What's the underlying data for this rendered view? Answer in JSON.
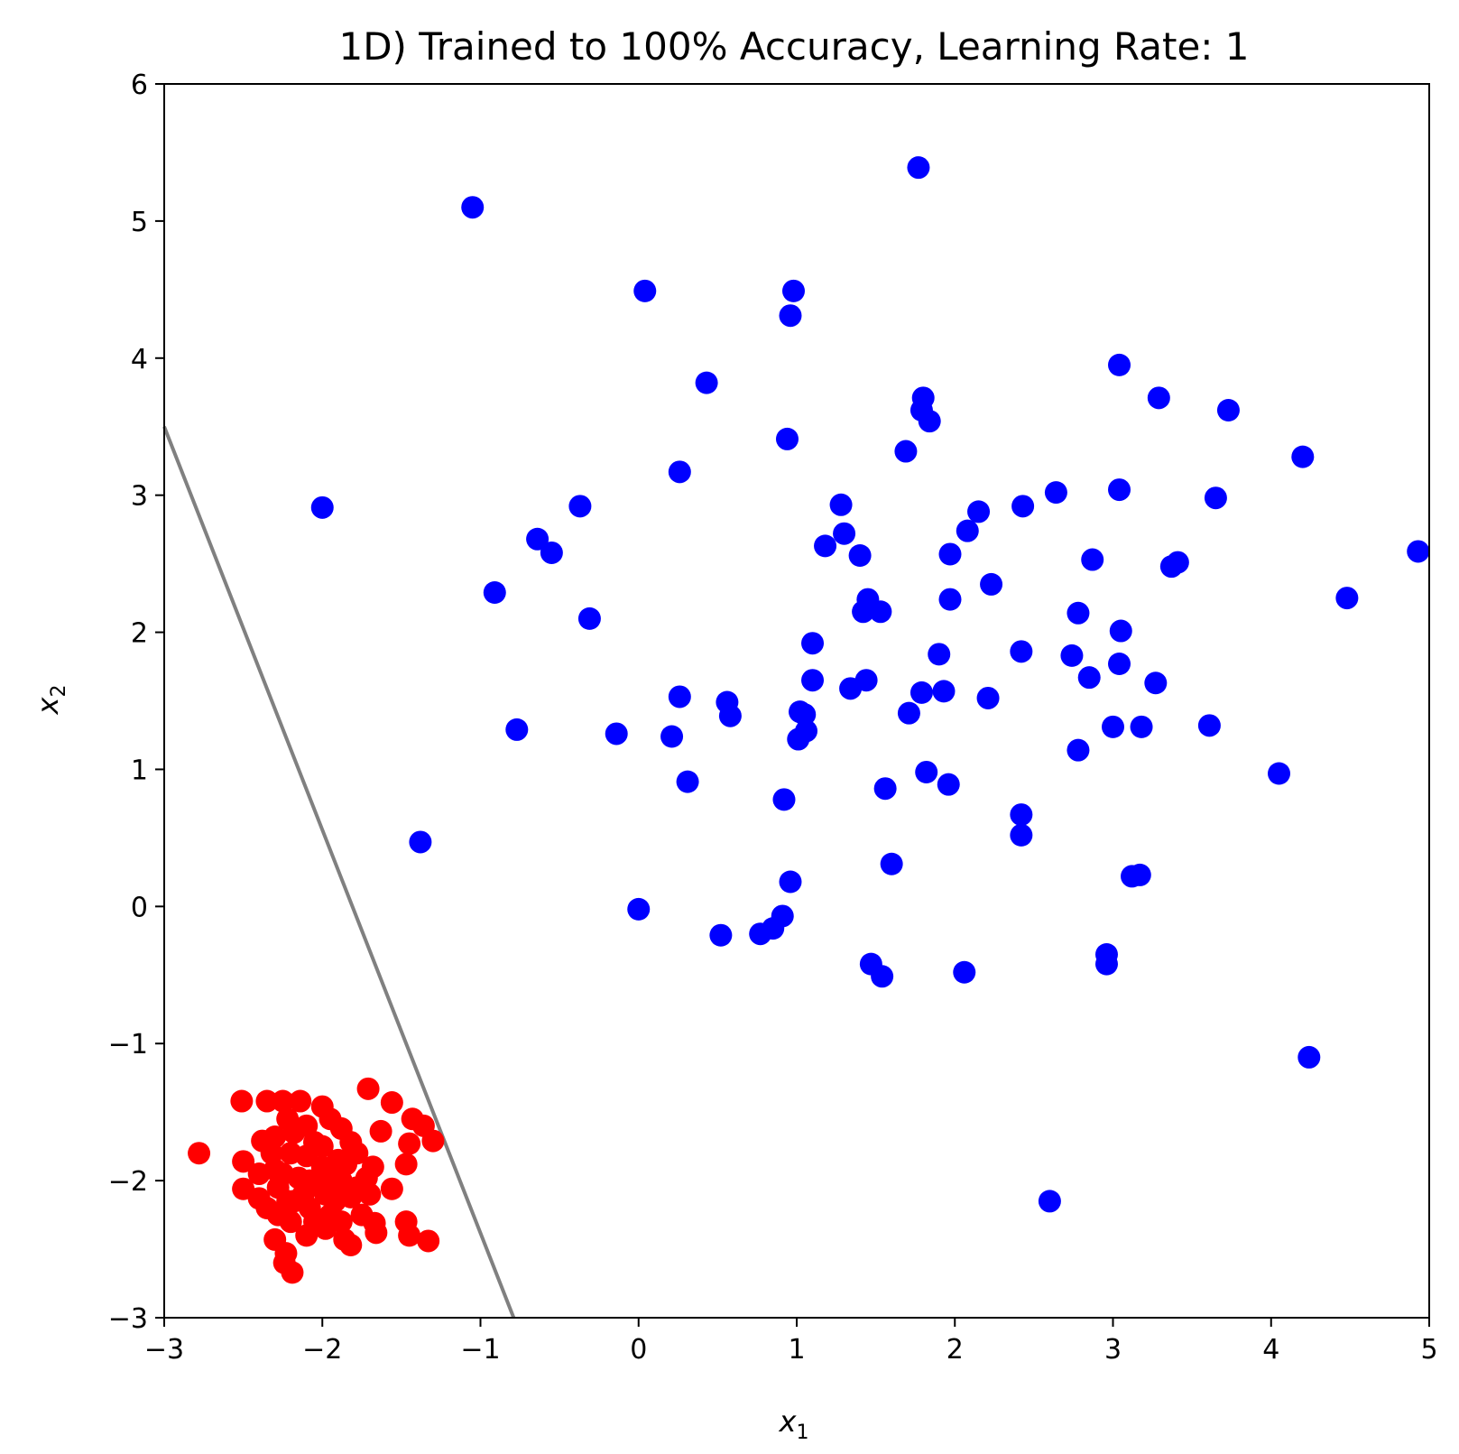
{
  "chart_data": {
    "type": "scatter",
    "title": "1D) Trained to 100% Accuracy, Learning Rate: 1",
    "xlabel": "x",
    "xlabel_sub": "1",
    "ylabel": "x",
    "ylabel_sub": "2",
    "xlim": [
      -3,
      5
    ],
    "ylim": [
      -3,
      6
    ],
    "xticks": [
      -3,
      -2,
      -1,
      0,
      1,
      2,
      3,
      4,
      5
    ],
    "yticks": [
      -3,
      -2,
      -1,
      0,
      1,
      2,
      3,
      4,
      5,
      6
    ],
    "xtick_labels": [
      "−3",
      "−2",
      "−1",
      "0",
      "1",
      "2",
      "3",
      "4",
      "5"
    ],
    "ytick_labels": [
      "−3",
      "−2",
      "−1",
      "0",
      "1",
      "2",
      "3",
      "4",
      "5",
      "6"
    ],
    "grid": false,
    "colors": {
      "series_blue": "#0000ff",
      "series_red": "#ff0000",
      "boundary": "#808080"
    },
    "boundary_line": {
      "x": [
        -3.0,
        -0.79
      ],
      "y": [
        3.5,
        -3.0
      ]
    },
    "series": [
      {
        "color": "#0000ff",
        "points": [
          [
            -1.05,
            5.1
          ],
          [
            1.77,
            5.39
          ],
          [
            0.04,
            4.49
          ],
          [
            0.98,
            4.49
          ],
          [
            0.96,
            4.31
          ],
          [
            0.43,
            3.82
          ],
          [
            1.8,
            3.71
          ],
          [
            1.79,
            3.62
          ],
          [
            1.84,
            3.54
          ],
          [
            3.04,
            3.95
          ],
          [
            3.29,
            3.71
          ],
          [
            3.73,
            3.62
          ],
          [
            0.94,
            3.41
          ],
          [
            1.69,
            3.32
          ],
          [
            4.2,
            3.28
          ],
          [
            -2.0,
            2.91
          ],
          [
            0.26,
            3.17
          ],
          [
            -0.37,
            2.92
          ],
          [
            2.64,
            3.02
          ],
          [
            3.04,
            3.04
          ],
          [
            3.65,
            2.98
          ],
          [
            1.28,
            2.93
          ],
          [
            2.43,
            2.92
          ],
          [
            2.15,
            2.88
          ],
          [
            2.08,
            2.74
          ],
          [
            1.3,
            2.72
          ],
          [
            -0.64,
            2.68
          ],
          [
            -0.55,
            2.58
          ],
          [
            1.18,
            2.63
          ],
          [
            1.4,
            2.56
          ],
          [
            1.97,
            2.57
          ],
          [
            2.87,
            2.53
          ],
          [
            3.37,
            2.48
          ],
          [
            3.41,
            2.51
          ],
          [
            4.93,
            2.59
          ],
          [
            -0.91,
            2.29
          ],
          [
            2.23,
            2.35
          ],
          [
            4.48,
            2.25
          ],
          [
            1.45,
            2.24
          ],
          [
            1.42,
            2.15
          ],
          [
            1.53,
            2.15
          ],
          [
            1.97,
            2.24
          ],
          [
            -0.31,
            2.1
          ],
          [
            2.78,
            2.14
          ],
          [
            3.05,
            2.01
          ],
          [
            1.1,
            1.92
          ],
          [
            1.9,
            1.84
          ],
          [
            2.42,
            1.86
          ],
          [
            2.74,
            1.83
          ],
          [
            3.04,
            1.77
          ],
          [
            1.1,
            1.65
          ],
          [
            1.44,
            1.65
          ],
          [
            2.85,
            1.67
          ],
          [
            3.27,
            1.63
          ],
          [
            1.34,
            1.59
          ],
          [
            1.79,
            1.56
          ],
          [
            1.93,
            1.57
          ],
          [
            0.26,
            1.53
          ],
          [
            2.21,
            1.52
          ],
          [
            0.56,
            1.49
          ],
          [
            0.58,
            1.39
          ],
          [
            1.02,
            1.42
          ],
          [
            1.05,
            1.4
          ],
          [
            1.71,
            1.41
          ],
          [
            -0.77,
            1.29
          ],
          [
            -0.14,
            1.26
          ],
          [
            0.21,
            1.24
          ],
          [
            1.06,
            1.28
          ],
          [
            1.01,
            1.22
          ],
          [
            3.0,
            1.31
          ],
          [
            3.18,
            1.31
          ],
          [
            3.61,
            1.32
          ],
          [
            2.78,
            1.14
          ],
          [
            1.82,
            0.98
          ],
          [
            4.05,
            0.97
          ],
          [
            0.31,
            0.91
          ],
          [
            1.96,
            0.89
          ],
          [
            1.56,
            0.86
          ],
          [
            0.92,
            0.78
          ],
          [
            2.42,
            0.67
          ],
          [
            2.42,
            0.52
          ],
          [
            -1.38,
            0.47
          ],
          [
            1.6,
            0.31
          ],
          [
            3.12,
            0.22
          ],
          [
            3.17,
            0.23
          ],
          [
            0.96,
            0.18
          ],
          [
            0.0,
            -0.02
          ],
          [
            0.91,
            -0.07
          ],
          [
            0.85,
            -0.16
          ],
          [
            0.77,
            -0.2
          ],
          [
            0.52,
            -0.21
          ],
          [
            2.96,
            -0.35
          ],
          [
            2.96,
            -0.42
          ],
          [
            1.47,
            -0.42
          ],
          [
            1.54,
            -0.51
          ],
          [
            2.06,
            -0.48
          ],
          [
            4.24,
            -1.1
          ],
          [
            2.6,
            -2.15
          ]
        ]
      },
      {
        "color": "#ff0000",
        "points": [
          [
            -2.78,
            -1.8
          ],
          [
            -2.51,
            -1.42
          ],
          [
            -2.35,
            -1.42
          ],
          [
            -2.25,
            -1.42
          ],
          [
            -2.14,
            -1.42
          ],
          [
            -2.0,
            -1.46
          ],
          [
            -1.71,
            -1.33
          ],
          [
            -1.56,
            -1.43
          ],
          [
            -1.43,
            -1.55
          ],
          [
            -1.36,
            -1.6
          ],
          [
            -1.3,
            -1.71
          ],
          [
            -1.45,
            -1.73
          ],
          [
            -1.63,
            -1.64
          ],
          [
            -1.47,
            -1.88
          ],
          [
            -1.56,
            -2.06
          ],
          [
            -1.47,
            -2.3
          ],
          [
            -1.45,
            -2.4
          ],
          [
            -1.33,
            -2.44
          ],
          [
            -1.66,
            -2.38
          ],
          [
            -1.67,
            -2.31
          ],
          [
            -1.82,
            -2.47
          ],
          [
            -1.86,
            -2.43
          ],
          [
            -2.23,
            -2.53
          ],
          [
            -2.3,
            -2.43
          ],
          [
            -2.24,
            -2.6
          ],
          [
            -2.19,
            -2.67
          ],
          [
            -2.5,
            -1.86
          ],
          [
            -2.5,
            -2.06
          ],
          [
            -2.4,
            -2.13
          ],
          [
            -2.38,
            -1.71
          ],
          [
            -2.3,
            -1.68
          ],
          [
            -2.22,
            -1.55
          ],
          [
            -2.1,
            -1.6
          ],
          [
            -2.05,
            -1.72
          ],
          [
            -1.95,
            -1.55
          ],
          [
            -1.88,
            -1.62
          ],
          [
            -1.82,
            -1.72
          ],
          [
            -1.78,
            -1.8
          ],
          [
            -1.9,
            -1.85
          ],
          [
            -2.0,
            -1.9
          ],
          [
            -2.1,
            -1.82
          ],
          [
            -2.2,
            -1.8
          ],
          [
            -2.3,
            -1.92
          ],
          [
            -2.28,
            -2.05
          ],
          [
            -2.18,
            -2.15
          ],
          [
            -2.08,
            -2.2
          ],
          [
            -1.98,
            -2.1
          ],
          [
            -1.88,
            -2.0
          ],
          [
            -1.78,
            -2.05
          ],
          [
            -1.68,
            -1.9
          ],
          [
            -1.7,
            -2.1
          ],
          [
            -1.75,
            -2.25
          ],
          [
            -1.88,
            -2.3
          ],
          [
            -1.98,
            -2.35
          ],
          [
            -2.1,
            -2.4
          ],
          [
            -2.2,
            -2.3
          ],
          [
            -2.35,
            -2.2
          ],
          [
            -2.25,
            -1.95
          ],
          [
            -2.15,
            -1.98
          ],
          [
            -2.02,
            -2.02
          ],
          [
            -1.92,
            -2.15
          ],
          [
            -1.82,
            -2.12
          ],
          [
            -2.12,
            -2.1
          ],
          [
            -2.05,
            -2.3
          ],
          [
            -1.95,
            -1.98
          ],
          [
            -2.22,
            -2.15
          ],
          [
            -2.4,
            -1.95
          ],
          [
            -2.32,
            -1.8
          ],
          [
            -1.85,
            -1.88
          ],
          [
            -2.0,
            -1.75
          ],
          [
            -2.18,
            -1.65
          ],
          [
            -2.08,
            -2.0
          ],
          [
            -1.95,
            -2.25
          ],
          [
            -2.28,
            -2.25
          ],
          [
            -1.72,
            -1.98
          ]
        ]
      }
    ]
  }
}
